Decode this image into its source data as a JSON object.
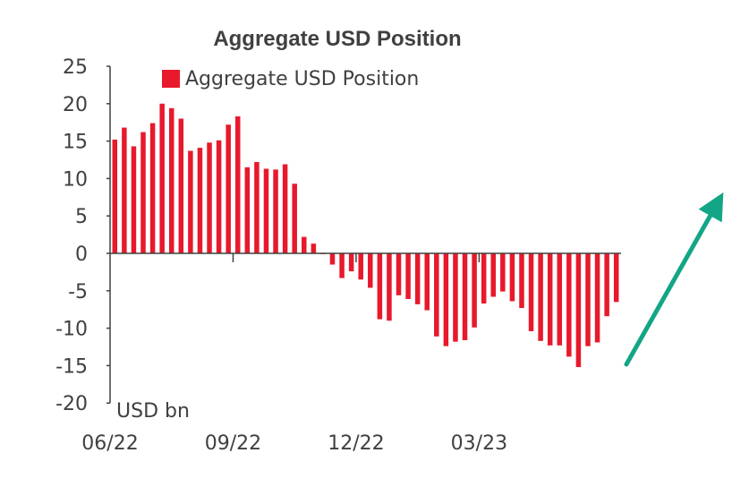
{
  "chart_data": {
    "type": "bar",
    "title": "Aggregate USD Position",
    "ylabel": "USD bn",
    "xlabel": "",
    "ylim": [
      -20,
      25
    ],
    "yticks": [
      "25",
      "20",
      "15",
      "10",
      "5",
      "0",
      "-5",
      "-10",
      "-15",
      "-20"
    ],
    "ytick_values": [
      25,
      20,
      15,
      10,
      5,
      0,
      -5,
      -10,
      -15,
      -20
    ],
    "xtick_labels": [
      "06/22",
      "09/22",
      "12/22",
      "03/23"
    ],
    "xtick_indices": [
      0,
      13,
      26,
      39
    ],
    "grid": false,
    "legend_position": "top",
    "series": [
      {
        "name": "Aggregate USD Position",
        "color": "#e8192c",
        "values": [
          15.2,
          16.8,
          14.3,
          16.2,
          17.4,
          20.0,
          19.4,
          18.0,
          13.7,
          14.1,
          14.8,
          15.1,
          17.2,
          18.3,
          11.5,
          12.2,
          11.3,
          11.2,
          11.9,
          9.3,
          2.2,
          1.3,
          -0.1,
          -1.5,
          -3.3,
          -2.4,
          -3.5,
          -4.6,
          -8.8,
          -9.0,
          -5.6,
          -6.1,
          -6.8,
          -7.6,
          -11.1,
          -12.4,
          -11.8,
          -11.6,
          -9.9,
          -6.7,
          -5.8,
          -5.1,
          -6.4,
          -7.3,
          -10.4,
          -11.7,
          -12.3,
          -12.3,
          -13.8,
          -15.2,
          -12.4,
          -11.9,
          -8.4,
          -6.5
        ]
      }
    ]
  },
  "annotation": {
    "arrow_color": "#13a686",
    "direction": "up-right"
  }
}
